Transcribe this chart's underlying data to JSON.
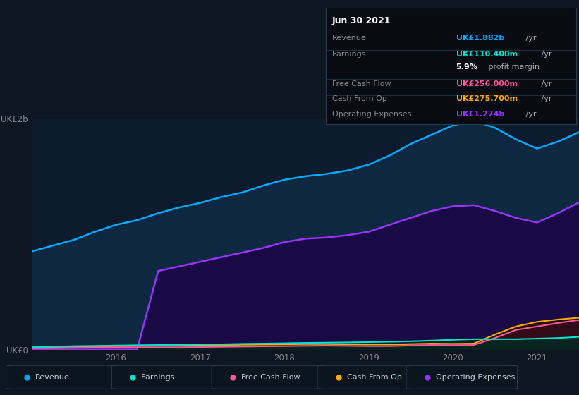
{
  "bg_color": "#0e1621",
  "plot_bg_color": "#0d1b2e",
  "years": [
    2015.0,
    2015.25,
    2015.5,
    2015.75,
    2016.0,
    2016.25,
    2016.5,
    2016.75,
    2017.0,
    2017.25,
    2017.5,
    2017.75,
    2018.0,
    2018.25,
    2018.5,
    2018.75,
    2019.0,
    2019.25,
    2019.5,
    2019.75,
    2020.0,
    2020.25,
    2020.5,
    2020.75,
    2021.0,
    2021.25,
    2021.5
  ],
  "revenue": [
    0.85,
    0.9,
    0.95,
    1.02,
    1.08,
    1.12,
    1.18,
    1.23,
    1.27,
    1.32,
    1.36,
    1.42,
    1.47,
    1.5,
    1.52,
    1.55,
    1.6,
    1.68,
    1.78,
    1.86,
    1.94,
    1.98,
    1.92,
    1.82,
    1.74,
    1.8,
    1.882
  ],
  "op_expenses": [
    0.0,
    0.0,
    0.0,
    0.0,
    0.0,
    0.0,
    0.68,
    0.72,
    0.76,
    0.8,
    0.84,
    0.88,
    0.93,
    0.96,
    0.97,
    0.99,
    1.02,
    1.08,
    1.14,
    1.2,
    1.24,
    1.25,
    1.2,
    1.14,
    1.1,
    1.18,
    1.274
  ],
  "earnings": [
    0.02,
    0.025,
    0.03,
    0.032,
    0.035,
    0.038,
    0.04,
    0.042,
    0.044,
    0.046,
    0.05,
    0.052,
    0.055,
    0.058,
    0.06,
    0.062,
    0.065,
    0.068,
    0.072,
    0.078,
    0.085,
    0.09,
    0.09,
    0.09,
    0.095,
    0.1,
    0.11
  ],
  "free_cf": [
    0.01,
    0.012,
    0.015,
    0.018,
    0.02,
    0.02,
    0.02,
    0.02,
    0.022,
    0.024,
    0.026,
    0.028,
    0.03,
    0.032,
    0.034,
    0.032,
    0.03,
    0.03,
    0.035,
    0.04,
    0.038,
    0.04,
    0.1,
    0.17,
    0.2,
    0.23,
    0.256
  ],
  "cash_op": [
    0.02,
    0.022,
    0.025,
    0.028,
    0.03,
    0.032,
    0.034,
    0.036,
    0.038,
    0.04,
    0.042,
    0.044,
    0.046,
    0.048,
    0.048,
    0.046,
    0.044,
    0.044,
    0.048,
    0.052,
    0.05,
    0.052,
    0.13,
    0.2,
    0.24,
    0.26,
    0.276
  ],
  "revenue_color": "#00aaff",
  "earnings_color": "#00e5cc",
  "free_cf_color": "#ff5599",
  "cash_op_color": "#ffaa00",
  "op_expenses_color": "#9933ff",
  "revenue_fill": "#0d2a45",
  "op_expenses_fill": "#1a0a40",
  "ylim": [
    0,
    2.0
  ],
  "ytick_labels": [
    "UK£0",
    "UK£2b"
  ],
  "grid_color": "#1e3050",
  "legend_items": [
    {
      "label": "Revenue",
      "color": "#00aaff"
    },
    {
      "label": "Earnings",
      "color": "#00e5cc"
    },
    {
      "label": "Free Cash Flow",
      "color": "#ff5599"
    },
    {
      "label": "Cash From Op",
      "color": "#ffaa00"
    },
    {
      "label": "Operating Expenses",
      "color": "#9933ff"
    }
  ],
  "info_box": {
    "date": "Jun 30 2021",
    "bg_color": "#080c12",
    "border_color": "#2a3a50",
    "rows": [
      {
        "label": "Revenue",
        "value": "UK£1.882b",
        "unit": " /yr",
        "value_color": "#00aaff"
      },
      {
        "label": "Earnings",
        "value": "UK£110.400m",
        "unit": " /yr",
        "value_color": "#00e5cc"
      },
      {
        "label": "",
        "value": "5.9%",
        "unit": " profit margin",
        "value_color": "#ffffff"
      },
      {
        "label": "Free Cash Flow",
        "value": "UK£256.000m",
        "unit": " /yr",
        "value_color": "#ff5599"
      },
      {
        "label": "Cash From Op",
        "value": "UK£275.700m",
        "unit": " /yr",
        "value_color": "#ffaa00"
      },
      {
        "label": "Operating Expenses",
        "value": "UK£1.274b",
        "unit": " /yr",
        "value_color": "#9933ff"
      }
    ]
  }
}
